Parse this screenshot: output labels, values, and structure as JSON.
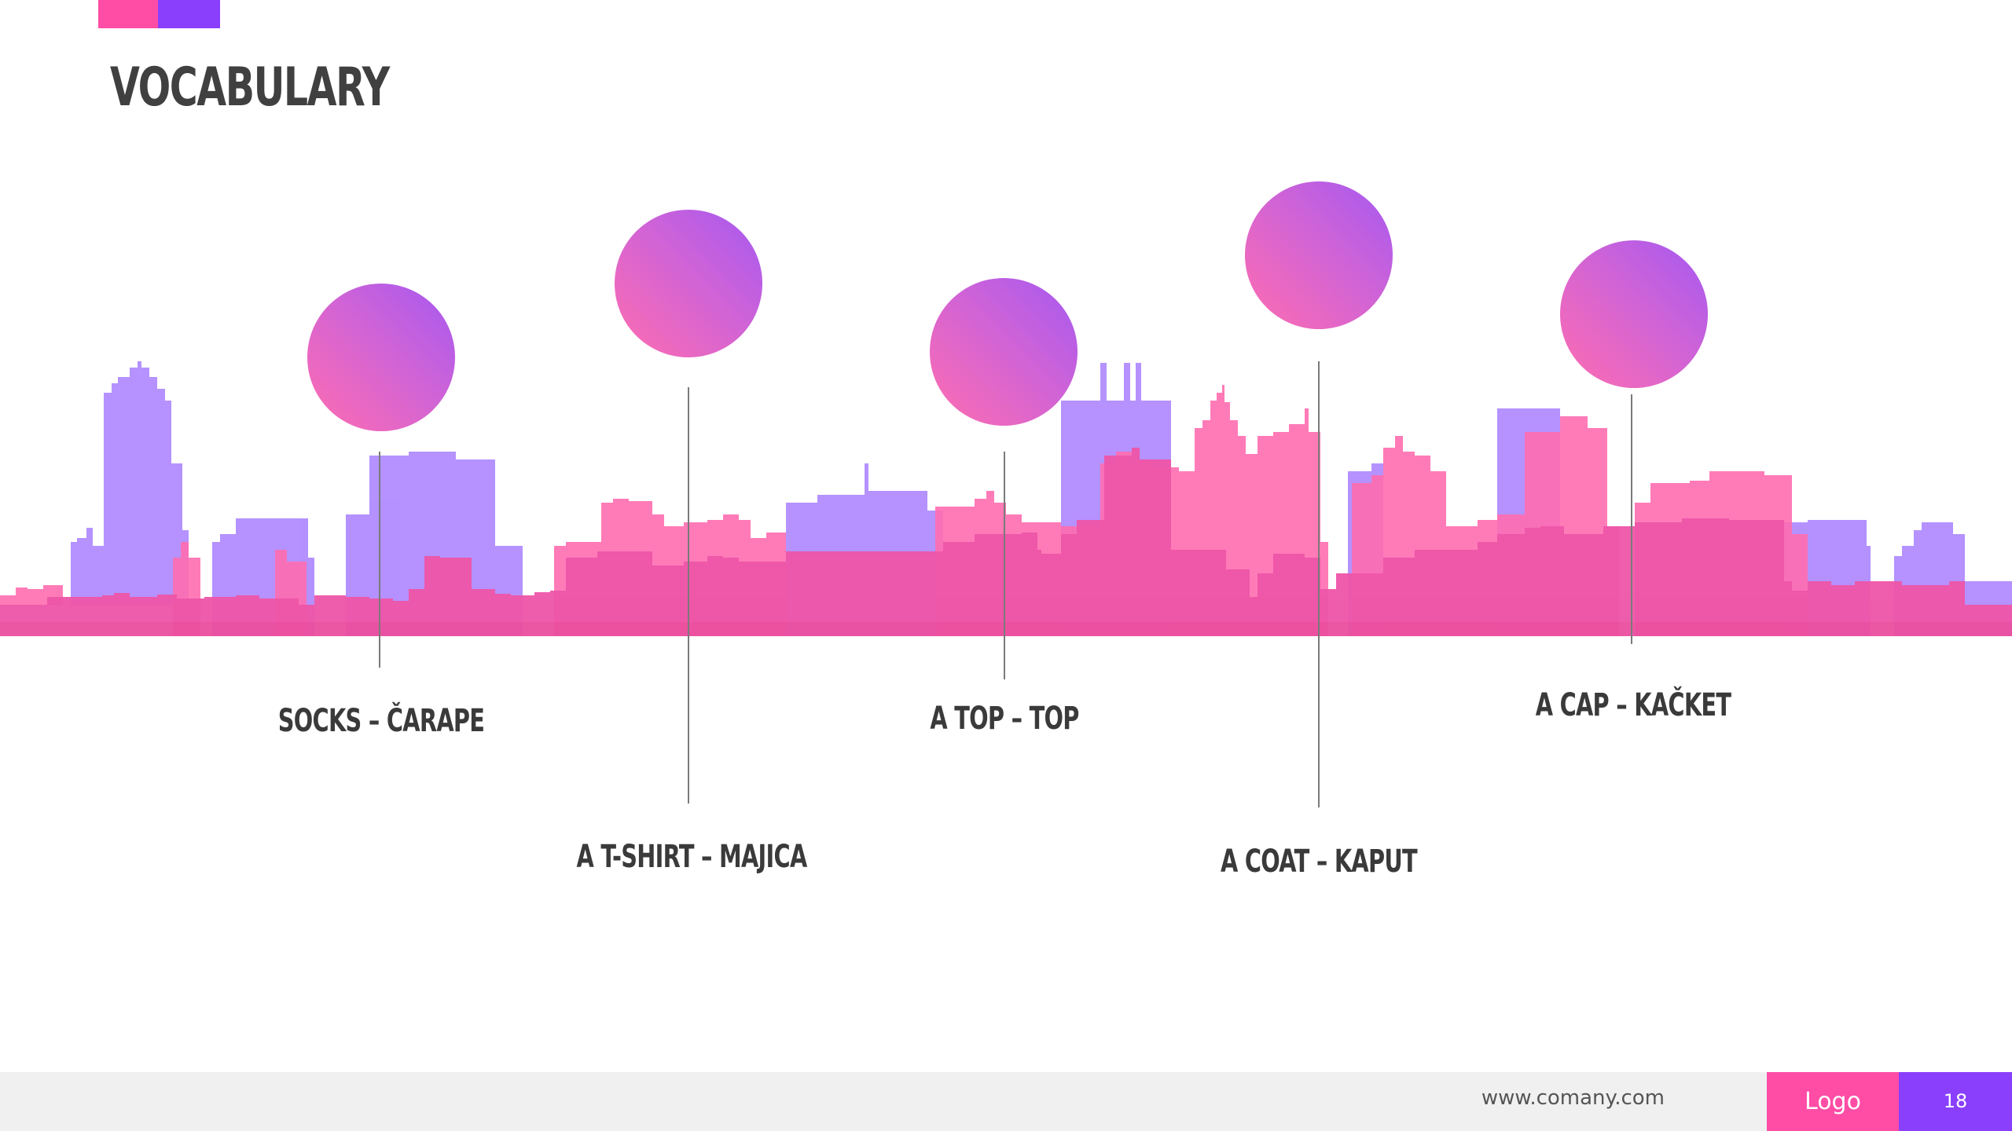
{
  "slide": {
    "title": "VOCABULARY",
    "colors": {
      "pink": "#ff4da6",
      "purple": "#8a3ffc",
      "skyline_purple": "#b18cff",
      "skyline_pink": "#ff6db0",
      "skyline_dark_pink": "#ee55a8"
    }
  },
  "vocabulary": [
    {
      "english": "SOCKS",
      "translation": "ČARAPE",
      "label": "SOCKS – ČARAPE"
    },
    {
      "english": "A T-SHIRT",
      "translation": "MAJICA",
      "label": "A T-SHIRT – MAJICA"
    },
    {
      "english": "A TOP",
      "translation": "TOP",
      "label": "A TOP – TOP"
    },
    {
      "english": "A COAT",
      "translation": "KAPUT",
      "label": "A COAT – KAPUT"
    },
    {
      "english": "A CAP",
      "translation": "KAČKET",
      "label": "A CAP – KAČKET"
    }
  ],
  "footer": {
    "url": "www.comany.com",
    "logo": "Logo",
    "page_number": "18"
  }
}
